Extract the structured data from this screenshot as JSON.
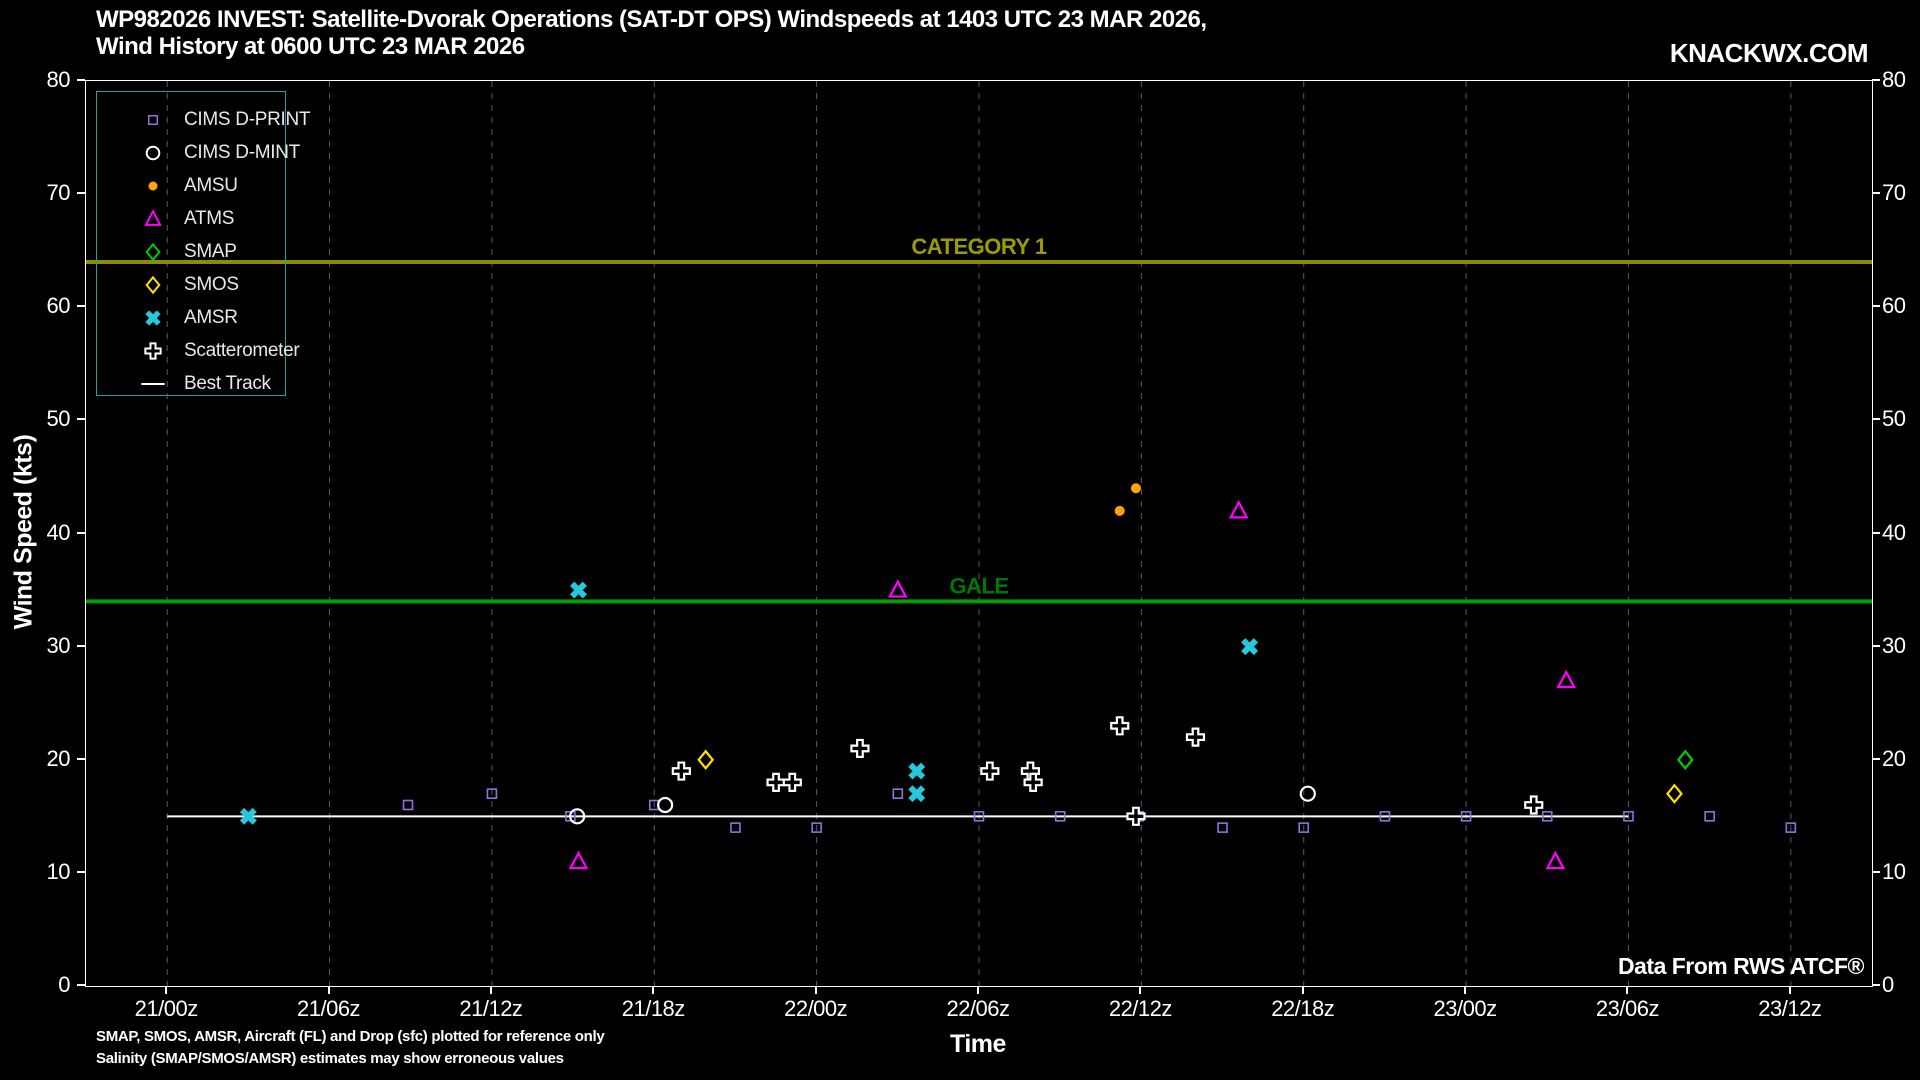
{
  "header": {
    "title_line1": "WP982026 INVEST: Satellite-Dvorak Operations (SAT-DT OPS) Windspeeds at 1403 UTC 23 MAR 2026,",
    "title_line2": "Wind History at 0600 UTC 23 MAR 2026",
    "watermark": "KNACKWX.COM"
  },
  "footer": {
    "note_line1": "SMAP, SMOS, AMSR, Aircraft (FL) and Drop (sfc) plotted for reference only",
    "note_line2": "Salinity (SMAP/SMOS/AMSR) estimates may show erroneous values",
    "data_source": "Data From RWS ATCF®"
  },
  "chart_data": {
    "type": "scatter",
    "title": "WP982026 INVEST: Satellite-Dvorak Operations (SAT-DT OPS) Windspeeds at 1403 UTC 23 MAR 2026, Wind History at 0600 UTC 23 MAR 2026",
    "xlabel": "Time",
    "ylabel": "Wind Speed (kts)",
    "ylim": [
      0,
      80
    ],
    "y_ticks": [
      0,
      10,
      20,
      30,
      40,
      50,
      60,
      70,
      80
    ],
    "x_range_hours": [
      -3,
      63
    ],
    "x_ticks": [
      {
        "label": "21/00z",
        "t": 0
      },
      {
        "label": "21/06z",
        "t": 6
      },
      {
        "label": "21/12z",
        "t": 12
      },
      {
        "label": "21/18z",
        "t": 18
      },
      {
        "label": "22/00z",
        "t": 24
      },
      {
        "label": "22/06z",
        "t": 30
      },
      {
        "label": "22/12z",
        "t": 36
      },
      {
        "label": "22/18z",
        "t": 42
      },
      {
        "label": "23/00z",
        "t": 48
      },
      {
        "label": "23/06z",
        "t": 54
      },
      {
        "label": "23/12z",
        "t": 60
      }
    ],
    "grid": "vertical-dashed",
    "grid_color": "#5a5a5a",
    "legend_position": "upper-left",
    "legend_border_color": "#12a5a5",
    "reference_lines": [
      {
        "label": "CATEGORY 1",
        "value": 64,
        "line_color": "#8c8c00",
        "label_color": "#9c9c00"
      },
      {
        "label": "GALE",
        "value": 34,
        "line_color": "#00a000",
        "label_color": "#007700"
      }
    ],
    "best_track": {
      "name": "Best Track",
      "color": "#ffffff",
      "value": 15,
      "t_start": 0,
      "t_end": 54
    },
    "series": [
      {
        "name": "CIMS D-PRINT",
        "marker": "square-open-small",
        "color": "#9370db",
        "points": [
          [
            8.9,
            16
          ],
          [
            12,
            17
          ],
          [
            14.9,
            15
          ],
          [
            18,
            16
          ],
          [
            21,
            14
          ],
          [
            24,
            14
          ],
          [
            27,
            17
          ],
          [
            30,
            15
          ],
          [
            33,
            15
          ],
          [
            35.9,
            15
          ],
          [
            39,
            14
          ],
          [
            42,
            14
          ],
          [
            45,
            15
          ],
          [
            48,
            15
          ],
          [
            51,
            15
          ],
          [
            54,
            15
          ],
          [
            57,
            15
          ],
          [
            60,
            14
          ]
        ]
      },
      {
        "name": "CIMS D-MINT",
        "marker": "circle-open",
        "color": "#ffffff",
        "points": [
          [
            15.15,
            15
          ],
          [
            18.4,
            16
          ],
          [
            42.15,
            17
          ]
        ]
      },
      {
        "name": "AMSU",
        "marker": "dot",
        "color": "#ffa500",
        "points": [
          [
            35.2,
            42
          ],
          [
            35.8,
            44
          ]
        ]
      },
      {
        "name": "ATMS",
        "marker": "triangle-open",
        "color": "#ff00ff",
        "points": [
          [
            15.2,
            11
          ],
          [
            27,
            35
          ],
          [
            39.6,
            42
          ],
          [
            51.3,
            11
          ],
          [
            51.7,
            27
          ]
        ]
      },
      {
        "name": "SMAP",
        "marker": "diamond-open",
        "color": "#00cc00",
        "points": [
          [
            56.1,
            20
          ]
        ]
      },
      {
        "name": "SMOS",
        "marker": "diamond-open",
        "color": "#ffe000",
        "points": [
          [
            19.9,
            20
          ],
          [
            55.7,
            17
          ]
        ]
      },
      {
        "name": "AMSR",
        "marker": "x-bold",
        "color": "#25c9db",
        "points": [
          [
            3,
            15
          ],
          [
            15.2,
            35
          ],
          [
            27.7,
            19
          ],
          [
            27.7,
            17
          ],
          [
            40,
            30
          ]
        ]
      },
      {
        "name": "Scatterometer",
        "marker": "plus-open",
        "color": "#ffffff",
        "points": [
          [
            19,
            19
          ],
          [
            22.5,
            18
          ],
          [
            23.1,
            18
          ],
          [
            25.6,
            21
          ],
          [
            30.4,
            19
          ],
          [
            31.9,
            19
          ],
          [
            32,
            18
          ],
          [
            35.2,
            23
          ],
          [
            35.8,
            15
          ],
          [
            38,
            22
          ],
          [
            50.5,
            16
          ]
        ]
      }
    ]
  }
}
